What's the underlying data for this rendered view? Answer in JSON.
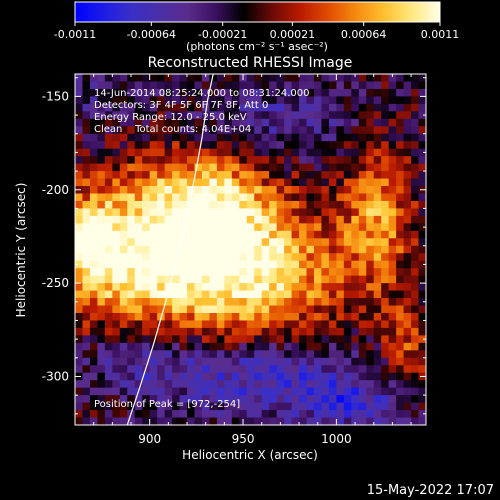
{
  "colorbar": {
    "ticks": [
      "-0.0011",
      "-0.00064",
      "-0.00021",
      "0.00021",
      "0.00064",
      "0.0011"
    ],
    "tick_values": [
      -0.0011,
      -0.00064,
      -0.00021,
      0.00021,
      0.00064,
      0.0011
    ],
    "range": [
      -0.0011,
      0.0011
    ],
    "units_label": "(photons cm⁻² s⁻¹ asec⁻²)",
    "colormap": [
      "#0000ff",
      "#1c1ce6",
      "#3a2fc8",
      "#4a2fa8",
      "#5a2c8c",
      "#3a1060",
      "#000000",
      "#6a0a08",
      "#b81a00",
      "#e04a00",
      "#f58a10",
      "#ffc030",
      "#ffe880",
      "#ffffe8"
    ]
  },
  "chart_data": {
    "type": "heatmap",
    "title": "Reconstructed RHESSI Image",
    "xlabel": "Heliocentric X (arcsec)",
    "ylabel": "Heliocentric Y (arcsec)",
    "xlim": [
      860,
      1048
    ],
    "ylim": [
      -326,
      -138
    ],
    "x_ticks": [
      900,
      950,
      1000
    ],
    "y_ticks": [
      -150,
      -200,
      -250,
      -300
    ],
    "annotations": [
      "14-Jun-2014 08:25:24.000 to 08:31:24.000",
      "Detectors: 3F 4F 5F 6F 7F 8F, Att 0",
      "Energy Range: 12.0 - 25.0 keV",
      "Clean    Total counts: 4.04E+04",
      "Position of Peak = [972,-254]"
    ],
    "peak": [
      972,
      -254
    ],
    "limb_curve_x": [
      888,
      895,
      902,
      908,
      914,
      919,
      924,
      928,
      931,
      934
    ],
    "limb_curve_y": [
      -326,
      -305,
      -283,
      -262,
      -240,
      -217,
      -194,
      -172,
      -152,
      -138
    ],
    "grid": false,
    "blobs": [
      {
        "x": 950,
        "y": -243,
        "sx": 35,
        "sy": 25,
        "a": 1.0
      },
      {
        "x": 932,
        "y": -205,
        "sx": 22,
        "sy": 18,
        "a": 0.7
      },
      {
        "x": 888,
        "y": -233,
        "sx": 28,
        "sy": 28,
        "a": 0.82
      },
      {
        "x": 866,
        "y": -228,
        "sx": 10,
        "sy": 14,
        "a": 0.6
      },
      {
        "x": 1022,
        "y": -213,
        "sx": 13,
        "sy": 26,
        "a": 0.6
      },
      {
        "x": 1038,
        "y": -285,
        "sx": 10,
        "sy": 18,
        "a": 0.4
      },
      {
        "x": 970,
        "y": -162,
        "sx": 30,
        "sy": 15,
        "a": -0.3
      },
      {
        "x": 960,
        "y": -300,
        "sx": 40,
        "sy": 15,
        "a": -0.5
      },
      {
        "x": 895,
        "y": -290,
        "sx": 22,
        "sy": 12,
        "a": -0.35
      },
      {
        "x": 1010,
        "y": -315,
        "sx": 20,
        "sy": 10,
        "a": -0.4
      },
      {
        "x": 870,
        "y": -150,
        "sx": 18,
        "sy": 12,
        "a": -0.2
      }
    ]
  },
  "footer": {
    "timestamp": "15-May-2022 17:07"
  }
}
